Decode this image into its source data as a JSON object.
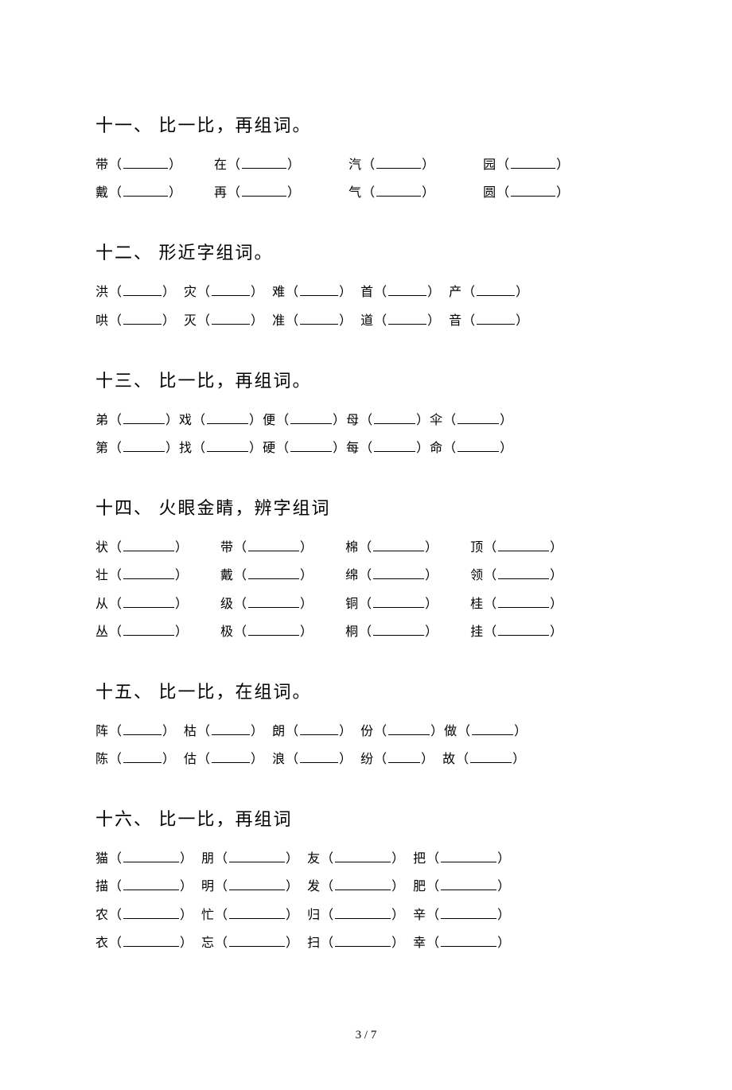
{
  "sections": [
    {
      "title": "十一、 比一比，再组词。",
      "rows": [
        [
          {
            "c": "带",
            "bw": 56,
            "gap": "m"
          },
          {
            "c": "在",
            "bw": 56,
            "gap": "l"
          },
          {
            "c": "汽",
            "bw": 56,
            "gap": "l"
          },
          {
            "c": "园",
            "bw": 56
          }
        ],
        [
          {
            "c": "戴",
            "bw": 56,
            "gap": "m"
          },
          {
            "c": "再",
            "bw": 56,
            "gap": "l"
          },
          {
            "c": "气",
            "bw": 56,
            "gap": "l"
          },
          {
            "c": "圆",
            "bw": 56
          }
        ]
      ]
    },
    {
      "title": "十二、 形近字组词。",
      "rows": [
        [
          {
            "c": "洪",
            "bw": 48,
            "gap": "s"
          },
          {
            "c": "灾",
            "bw": 48,
            "gap": "s"
          },
          {
            "c": "难",
            "bw": 48,
            "gap": "s"
          },
          {
            "c": "首",
            "bw": 48,
            "gap": "s"
          },
          {
            "c": "产",
            "bw": 48
          }
        ],
        [
          {
            "c": "哄",
            "bw": 48,
            "gap": "s"
          },
          {
            "c": "灭",
            "bw": 48,
            "gap": "s"
          },
          {
            "c": "准",
            "bw": 48,
            "gap": "s"
          },
          {
            "c": "道",
            "bw": 48,
            "gap": "s"
          },
          {
            "c": "音",
            "bw": 48
          }
        ]
      ]
    },
    {
      "title": "十三、 比一比，再组词。",
      "rows": [
        [
          {
            "c": "弟",
            "bw": 52
          },
          {
            "c": "戏",
            "bw": 52
          },
          {
            "c": "便",
            "bw": 52
          },
          {
            "c": "母",
            "bw": 52
          },
          {
            "c": "伞",
            "bw": 52
          }
        ],
        [
          {
            "c": "第",
            "bw": 52
          },
          {
            "c": "找",
            "bw": 52
          },
          {
            "c": "硬",
            "bw": 52
          },
          {
            "c": "每",
            "bw": 52
          },
          {
            "c": "命",
            "bw": 52
          }
        ]
      ]
    },
    {
      "title": "十四、 火眼金睛，辨字组词",
      "rows": [
        [
          {
            "c": "状",
            "bw": 64,
            "gap": "m"
          },
          {
            "c": "带",
            "bw": 64,
            "gap": "m"
          },
          {
            "c": "棉",
            "bw": 64,
            "gap": "m"
          },
          {
            "c": "顶",
            "bw": 64
          }
        ],
        [
          {
            "c": "壮",
            "bw": 64,
            "gap": "m"
          },
          {
            "c": "戴",
            "bw": 64,
            "gap": "m"
          },
          {
            "c": "绵",
            "bw": 64,
            "gap": "m"
          },
          {
            "c": "领",
            "bw": 64
          }
        ],
        [
          {
            "c": "从",
            "bw": 64,
            "gap": "m"
          },
          {
            "c": "级",
            "bw": 64,
            "gap": "m"
          },
          {
            "c": "铜",
            "bw": 64,
            "gap": "m"
          },
          {
            "c": "桂",
            "bw": 64
          }
        ],
        [
          {
            "c": "丛",
            "bw": 64,
            "gap": "m"
          },
          {
            "c": "极",
            "bw": 64,
            "gap": "m"
          },
          {
            "c": "桐",
            "bw": 64,
            "gap": "m"
          },
          {
            "c": "挂",
            "bw": 64
          }
        ]
      ]
    },
    {
      "title": "十五、 比一比，在组词。",
      "rows": [
        [
          {
            "c": "阵",
            "bw": 48,
            "gap": "s"
          },
          {
            "c": "枯",
            "bw": 48,
            "gap": "s"
          },
          {
            "c": "朗",
            "bw": 48,
            "gap": "s"
          },
          {
            "c": "份",
            "bw": 52
          },
          {
            "c": "做",
            "bw": 52
          }
        ],
        [
          {
            "c": "陈",
            "bw": 48,
            "gap": "s"
          },
          {
            "c": "估",
            "bw": 48,
            "gap": "s"
          },
          {
            "c": "浪",
            "bw": 48,
            "gap": "s"
          },
          {
            "c": "纷",
            "bw": 40,
            "gap": "s"
          },
          {
            "c": "故",
            "bw": 52
          }
        ]
      ]
    },
    {
      "title": "十六、 比一比，再组词",
      "rows": [
        [
          {
            "c": "猫",
            "bw": 70,
            "gap": "s"
          },
          {
            "c": "朋",
            "bw": 70,
            "gap": "s"
          },
          {
            "c": "友",
            "bw": 70,
            "gap": "s"
          },
          {
            "c": "把",
            "bw": 70
          }
        ],
        [
          {
            "c": "描",
            "bw": 70,
            "gap": "s"
          },
          {
            "c": "明",
            "bw": 70,
            "gap": "s"
          },
          {
            "c": "发",
            "bw": 70,
            "gap": "s"
          },
          {
            "c": "肥",
            "bw": 70
          }
        ],
        [
          {
            "c": "农",
            "bw": 70,
            "gap": "s"
          },
          {
            "c": "忙",
            "bw": 70,
            "gap": "s"
          },
          {
            "c": "归",
            "bw": 70,
            "gap": "s"
          },
          {
            "c": "辛",
            "bw": 70
          }
        ],
        [
          {
            "c": "衣",
            "bw": 70,
            "gap": "s"
          },
          {
            "c": "忘",
            "bw": 70,
            "gap": "s"
          },
          {
            "c": "扫",
            "bw": 70,
            "gap": "s"
          },
          {
            "c": "幸",
            "bw": 70
          }
        ]
      ]
    }
  ],
  "footer": "3 / 7"
}
